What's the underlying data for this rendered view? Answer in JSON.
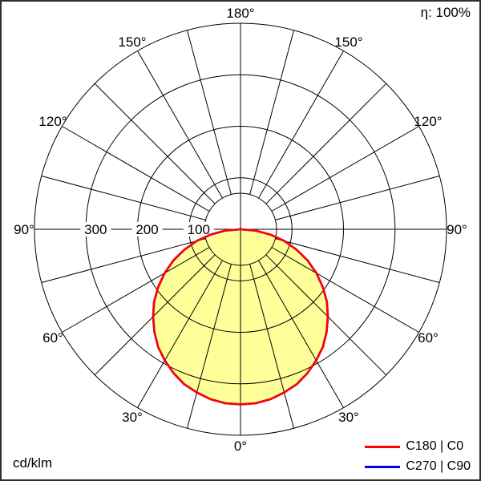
{
  "header": {
    "efficiency": "η: 100%"
  },
  "footer": {
    "unit": "cd/klm"
  },
  "legend": [
    {
      "label": "C180 | C0",
      "color": "#ff0000"
    },
    {
      "label": "C270 | C90",
      "color": "#0000ee"
    }
  ],
  "chart_data": {
    "type": "polar_photometric_intensity",
    "unit": "cd/klm",
    "efficiency_percent": 100,
    "radial_ticks": [
      300,
      200,
      100
    ],
    "radial_max": 400,
    "inner_radius_value": 70,
    "angle_labels_deg": [
      0,
      30,
      60,
      90,
      120,
      150,
      180
    ],
    "spoke_step_deg": 15,
    "grid_color": "#000000",
    "series": [
      {
        "name": "C180 | C0",
        "color": "#ff0000",
        "fill": "#ffff99",
        "gamma_deg": [
          0,
          5,
          10,
          15,
          20,
          25,
          30,
          35,
          40,
          45,
          50,
          55,
          60,
          65,
          70,
          75,
          80,
          85,
          90
        ],
        "values": [
          340,
          339,
          335,
          328,
          320,
          308,
          294,
          279,
          260,
          240,
          219,
          195,
          170,
          144,
          116,
          88,
          59,
          30,
          0
        ]
      },
      {
        "name": "C270 | C90",
        "color": "#0000ee",
        "fill": "none",
        "gamma_deg": [
          0,
          5,
          10,
          15,
          20,
          25,
          30,
          35,
          40,
          45,
          50,
          55,
          60,
          65,
          70,
          75,
          80,
          85,
          90
        ],
        "values": [
          340,
          339,
          335,
          328,
          320,
          308,
          294,
          279,
          260,
          240,
          219,
          195,
          170,
          144,
          116,
          88,
          59,
          30,
          0
        ]
      }
    ]
  }
}
